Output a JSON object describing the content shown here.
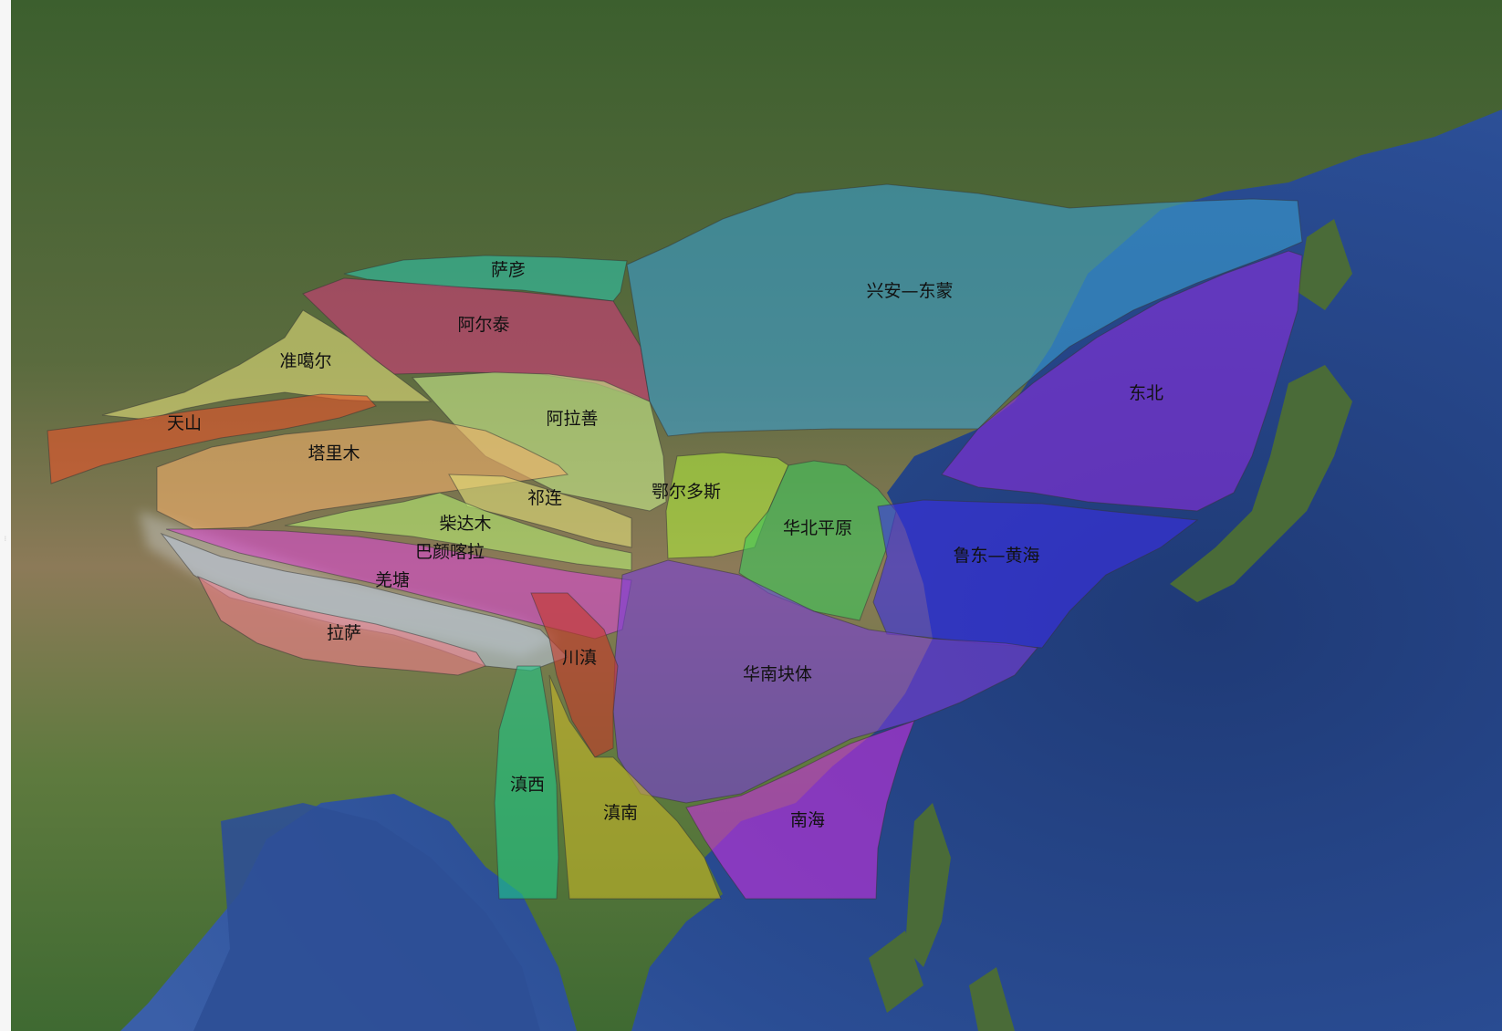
{
  "map": {
    "regions": [
      {
        "id": "sayan",
        "label": "萨彦",
        "color": "#2ec4a8"
      },
      {
        "id": "altai",
        "label": "阿尔泰",
        "color": "#d23a7a"
      },
      {
        "id": "junggar",
        "label": "准噶尔",
        "color": "#e3e07a"
      },
      {
        "id": "alxa",
        "label": "阿拉善",
        "color": "#c8ec8a"
      },
      {
        "id": "tianshan",
        "label": "天山",
        "color": "#e8542a"
      },
      {
        "id": "tarim",
        "label": "塔里木",
        "color": "#f3b06a"
      },
      {
        "id": "qilian",
        "label": "祁连",
        "color": "#e3e07a"
      },
      {
        "id": "qaidam",
        "label": "柴达木",
        "color": "#b6ec72"
      },
      {
        "id": "bayanhar",
        "label": "巴颜喀拉",
        "color": "#d94ad0"
      },
      {
        "id": "qiangtang",
        "label": "羌塘",
        "color": "#b9c6d8"
      },
      {
        "id": "lhasa",
        "label": "拉萨",
        "color": "#f07e8a"
      },
      {
        "id": "ordos",
        "label": "鄂尔多斯",
        "color": "#aee83c"
      },
      {
        "id": "north-china-plain",
        "label": "华北平原",
        "color": "#3ec85a"
      },
      {
        "id": "xingan-dongmeng",
        "label": "兴安—东蒙",
        "color": "#3a9ed0"
      },
      {
        "id": "northeast",
        "label": "东北",
        "color": "#8a2ee0"
      },
      {
        "id": "ludong-yellowsea",
        "label": "鲁东—黄海",
        "color": "#3a2ee8"
      },
      {
        "id": "south-china-block",
        "label": "华南块体",
        "color": "#7a3ed8"
      },
      {
        "id": "chuandian",
        "label": "川滇",
        "color": "#c8382a"
      },
      {
        "id": "dianxi",
        "label": "滇西",
        "color": "#20c888"
      },
      {
        "id": "diannan",
        "label": "滇南",
        "color": "#c8b828"
      },
      {
        "id": "south-sea",
        "label": "南海",
        "color": "#c830e0"
      }
    ]
  }
}
